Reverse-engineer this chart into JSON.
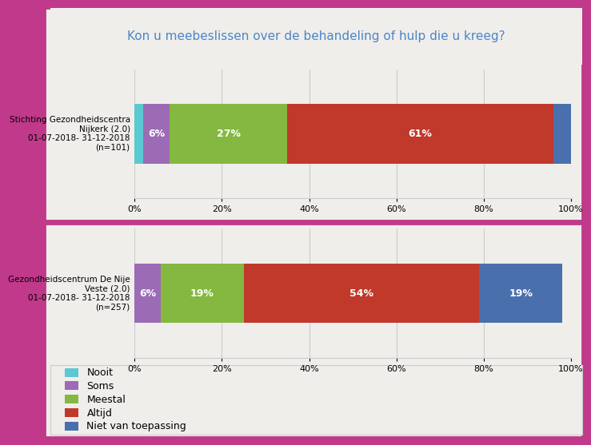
{
  "title": "Kon u meebeslissen over de behandeling of hulp die u kreeg?",
  "title_color": "#4a86c8",
  "border_color": "#c0398a",
  "background_color": "#f0eeeb",
  "bar1_label": "Stichting Gezondheidscentra\nNijkerk (2.0)\n01-07-2018- 31-12-2018\n(n=101)",
  "bar2_label": "Gezondheidscentrum De Nije\nVeste (2.0)\n01-07-2018- 31-12-2018\n(n=257)",
  "segments_keys": [
    "Nooit",
    "Soms",
    "Meestal",
    "Altijd",
    "Niet van toepassing"
  ],
  "segments_colors": [
    "#5bc8d2",
    "#9b6bb5",
    "#85b840",
    "#c0392b",
    "#4a6fad"
  ],
  "segments_values1": [
    2,
    6,
    27,
    61,
    4
  ],
  "segments_values2": [
    0,
    6,
    19,
    54,
    19
  ],
  "labels1": [
    "",
    "6%",
    "27%",
    "61%",
    ""
  ],
  "labels2": [
    "",
    "6%",
    "19%",
    "54%",
    "19%"
  ],
  "xtick_labels": [
    "0%",
    "20%",
    "40%",
    "60%",
    "80%",
    "100%"
  ],
  "legend_labels": [
    "Nooit",
    "Soms",
    "Meestal",
    "Altijd",
    "Niet van toepassing"
  ],
  "legend_colors": [
    "#5bc8d2",
    "#9b6bb5",
    "#85b840",
    "#c0392b",
    "#4a6fad"
  ],
  "grid_color": "#cccccc",
  "label_fontsize": 8,
  "bar_text_fontsize": 9,
  "title_fontsize": 11
}
